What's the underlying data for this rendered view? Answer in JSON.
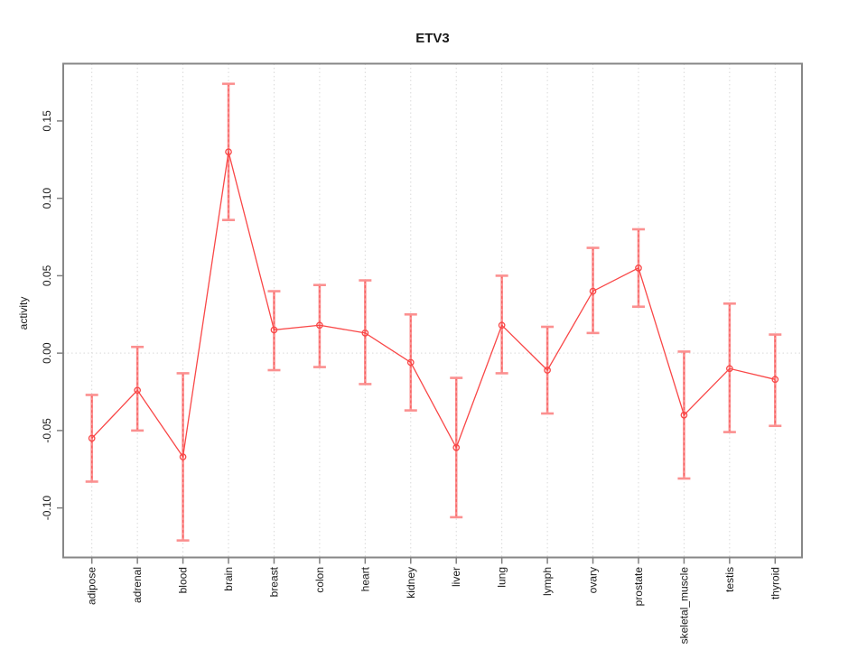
{
  "figure": {
    "background": "#ffffff",
    "kind": "R-style error-bar line plot"
  },
  "chart_data": {
    "type": "line",
    "title": "ETV3",
    "xlabel": "",
    "ylabel": "activity",
    "categories": [
      "adipose",
      "adrenal",
      "blood",
      "brain",
      "breast",
      "colon",
      "heart",
      "kidney",
      "liver",
      "lung",
      "lymph",
      "ovary",
      "prostate",
      "skeletal_muscle",
      "testis",
      "thyroid"
    ],
    "series": [
      {
        "name": "activity",
        "values": [
          -0.055,
          -0.024,
          -0.067,
          0.13,
          0.015,
          0.018,
          0.013,
          -0.006,
          -0.061,
          0.018,
          -0.011,
          0.04,
          0.055,
          -0.04,
          -0.01,
          -0.017
        ],
        "lower": [
          -0.083,
          -0.05,
          -0.121,
          0.086,
          -0.011,
          -0.009,
          -0.02,
          -0.037,
          -0.106,
          -0.013,
          -0.039,
          0.013,
          0.03,
          -0.081,
          -0.051,
          -0.047
        ],
        "upper": [
          -0.027,
          0.004,
          -0.013,
          0.174,
          0.04,
          0.044,
          0.047,
          0.025,
          -0.016,
          0.05,
          0.017,
          0.068,
          0.08,
          0.001,
          0.032,
          0.012
        ]
      }
    ],
    "ylim": [
      -0.132,
      0.187
    ],
    "yticks": [
      -0.1,
      -0.05,
      0.0,
      0.05,
      0.1,
      0.15
    ],
    "grid": {
      "vertical": "dotted line at every category",
      "horizontal": "dotted line at y = 0 only",
      "color": "#d9d9d9"
    },
    "legend": "none",
    "marker": "open-circle",
    "colors": {
      "line": "#f94747",
      "point": "#f94747",
      "error_bar": "#fb9090",
      "error_bar_dash": "#f75c5c",
      "grid": "#d9d9d9",
      "frame": "#878787",
      "tick": "#808080",
      "text": "#1a1a1a"
    }
  }
}
